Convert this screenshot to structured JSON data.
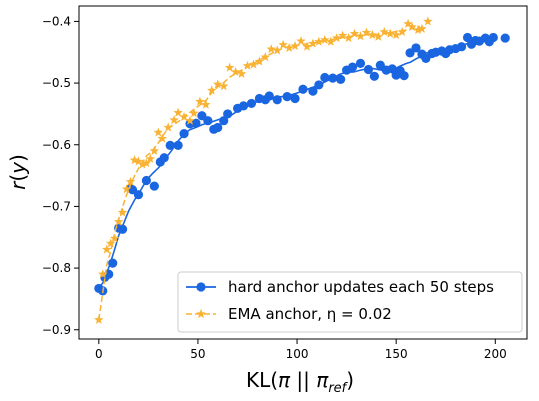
{
  "chart_data": {
    "type": "scatter",
    "xlabel": "KL(π || π_ref)",
    "ylabel": "r(y)",
    "xlim": [
      -10,
      216
    ],
    "ylim": [
      -0.915,
      -0.375
    ],
    "xticks": [
      0,
      50,
      100,
      150,
      200
    ],
    "yticks": [
      -0.9,
      -0.8,
      -0.7,
      -0.6,
      -0.5,
      -0.4
    ],
    "xtick_labels": [
      "0",
      "50",
      "100",
      "150",
      "200"
    ],
    "ytick_labels": [
      "−0.9",
      "−0.8",
      "−0.7",
      "−0.6",
      "−0.5",
      "−0.4"
    ],
    "legend_position": "lower-right",
    "grid": false,
    "series": [
      {
        "name": "hard anchor updates each 50 steps",
        "color": "#1a66e0",
        "marker": "circle",
        "line_style": "solid",
        "points": [
          [
            0,
            -0.833
          ],
          [
            2,
            -0.837
          ],
          [
            3,
            -0.815
          ],
          [
            5,
            -0.81
          ],
          [
            7,
            -0.792
          ],
          [
            10,
            -0.735
          ],
          [
            12,
            -0.737
          ],
          [
            16,
            -0.671
          ],
          [
            17,
            -0.673
          ],
          [
            20,
            -0.681
          ],
          [
            24,
            -0.658
          ],
          [
            28,
            -0.667
          ],
          [
            31,
            -0.628
          ],
          [
            33,
            -0.621
          ],
          [
            36,
            -0.601
          ],
          [
            40,
            -0.601
          ],
          [
            43,
            -0.582
          ],
          [
            46,
            -0.566
          ],
          [
            49,
            -0.565
          ],
          [
            52,
            -0.553
          ],
          [
            55,
            -0.561
          ],
          [
            58,
            -0.575
          ],
          [
            60,
            -0.572
          ],
          [
            63,
            -0.561
          ],
          [
            65,
            -0.55
          ],
          [
            70,
            -0.541
          ],
          [
            73,
            -0.537
          ],
          [
            77,
            -0.533
          ],
          [
            81,
            -0.525
          ],
          [
            84,
            -0.527
          ],
          [
            86,
            -0.521
          ],
          [
            90,
            -0.527
          ],
          [
            95,
            -0.522
          ],
          [
            99,
            -0.525
          ],
          [
            103,
            -0.51
          ],
          [
            108,
            -0.513
          ],
          [
            111,
            -0.503
          ],
          [
            114,
            -0.491
          ],
          [
            118,
            -0.492
          ],
          [
            122,
            -0.494
          ],
          [
            125,
            -0.479
          ],
          [
            128,
            -0.474
          ],
          [
            132,
            -0.468
          ],
          [
            136,
            -0.478
          ],
          [
            139,
            -0.489
          ],
          [
            142,
            -0.471
          ],
          [
            145,
            -0.479
          ],
          [
            148,
            -0.477
          ],
          [
            150,
            -0.487
          ],
          [
            152,
            -0.48
          ],
          [
            154,
            -0.488
          ],
          [
            157,
            -0.451
          ],
          [
            160,
            -0.443
          ],
          [
            163,
            -0.453
          ],
          [
            165,
            -0.46
          ],
          [
            168,
            -0.452
          ],
          [
            170,
            -0.45
          ],
          [
            173,
            -0.448
          ],
          [
            175,
            -0.452
          ],
          [
            177,
            -0.446
          ],
          [
            180,
            -0.444
          ],
          [
            183,
            -0.441
          ],
          [
            186,
            -0.426
          ],
          [
            188,
            -0.437
          ],
          [
            190,
            -0.431
          ],
          [
            192,
            -0.432
          ],
          [
            195,
            -0.427
          ],
          [
            197,
            -0.433
          ],
          [
            199,
            -0.426
          ],
          [
            205,
            -0.427
          ]
        ]
      },
      {
        "name": "EMA anchor, η = 0.02",
        "color": "#f9b233",
        "marker": "star",
        "line_style": "dashed",
        "points": [
          [
            0,
            -0.884
          ],
          [
            2,
            -0.81
          ],
          [
            4,
            -0.77
          ],
          [
            6,
            -0.76
          ],
          [
            8,
            -0.752
          ],
          [
            10,
            -0.725
          ],
          [
            12,
            -0.71
          ],
          [
            14,
            -0.672
          ],
          [
            16,
            -0.66
          ],
          [
            18,
            -0.625
          ],
          [
            20,
            -0.627
          ],
          [
            22,
            -0.632
          ],
          [
            24,
            -0.63
          ],
          [
            26,
            -0.623
          ],
          [
            28,
            -0.61
          ],
          [
            30,
            -0.58
          ],
          [
            32,
            -0.59
          ],
          [
            35,
            -0.572
          ],
          [
            38,
            -0.56
          ],
          [
            40,
            -0.548
          ],
          [
            43,
            -0.555
          ],
          [
            46,
            -0.561
          ],
          [
            48,
            -0.549
          ],
          [
            51,
            -0.53
          ],
          [
            54,
            -0.535
          ],
          [
            57,
            -0.512
          ],
          [
            60,
            -0.502
          ],
          [
            63,
            -0.505
          ],
          [
            66,
            -0.475
          ],
          [
            69,
            -0.482
          ],
          [
            72,
            -0.485
          ],
          [
            75,
            -0.472
          ],
          [
            78,
            -0.47
          ],
          [
            81,
            -0.465
          ],
          [
            84,
            -0.458
          ],
          [
            87,
            -0.445
          ],
          [
            90,
            -0.447
          ],
          [
            93,
            -0.438
          ],
          [
            96,
            -0.443
          ],
          [
            99,
            -0.44
          ],
          [
            102,
            -0.432
          ],
          [
            105,
            -0.441
          ],
          [
            108,
            -0.436
          ],
          [
            111,
            -0.433
          ],
          [
            114,
            -0.43
          ],
          [
            117,
            -0.433
          ],
          [
            120,
            -0.427
          ],
          [
            123,
            -0.423
          ],
          [
            126,
            -0.427
          ],
          [
            129,
            -0.42
          ],
          [
            132,
            -0.424
          ],
          [
            135,
            -0.418
          ],
          [
            138,
            -0.422
          ],
          [
            141,
            -0.425
          ],
          [
            144,
            -0.417
          ],
          [
            147,
            -0.42
          ],
          [
            150,
            -0.422
          ],
          [
            153,
            -0.417
          ],
          [
            156,
            -0.404
          ],
          [
            158,
            -0.409
          ],
          [
            161,
            -0.414
          ],
          [
            163,
            -0.412
          ],
          [
            166,
            -0.4
          ]
        ]
      }
    ]
  }
}
